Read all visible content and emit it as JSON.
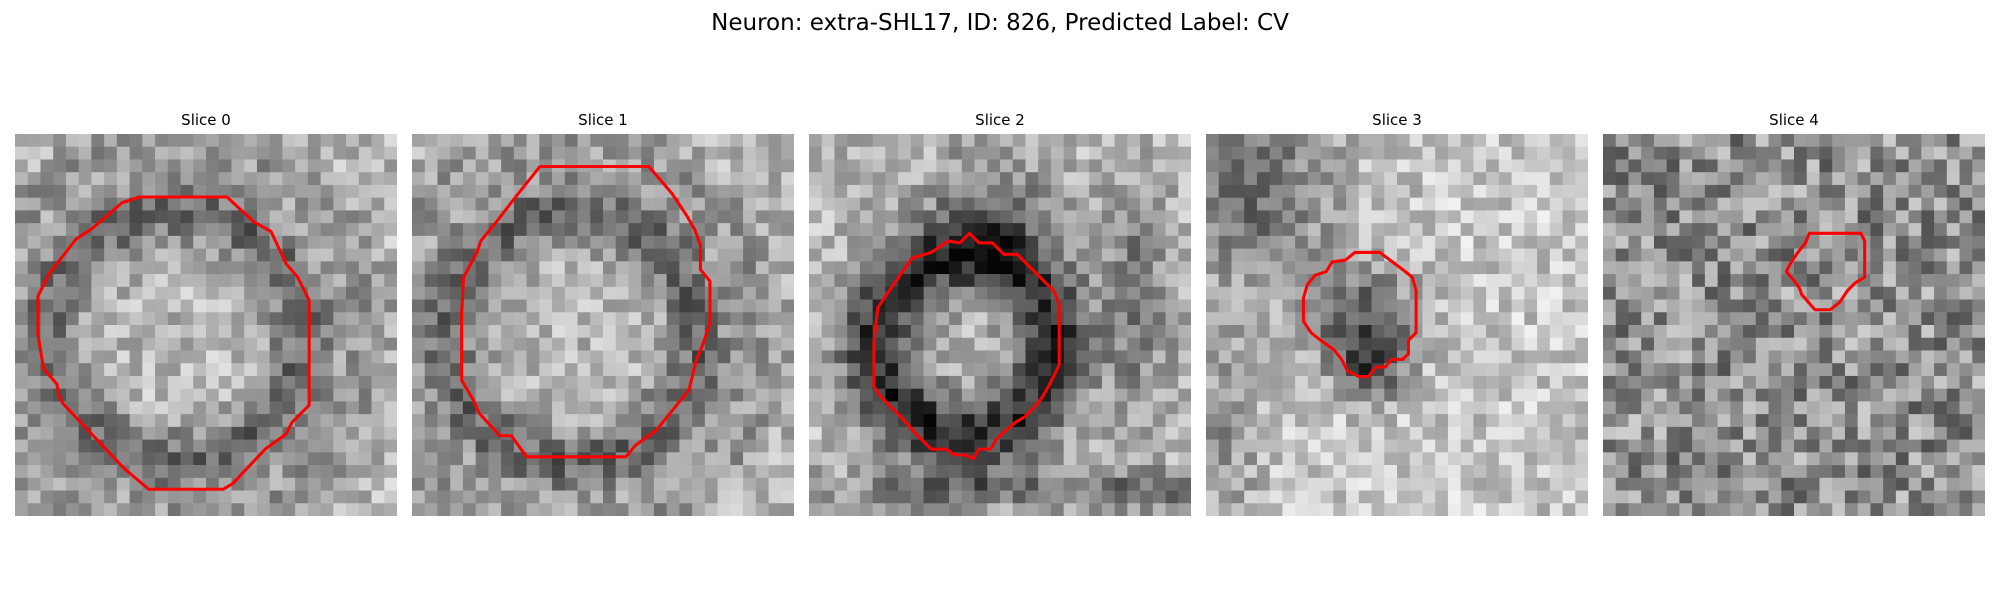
{
  "figure": {
    "title": "Neuron: extra-SHL17, ID: 826, Predicted Label: CV"
  },
  "colors": {
    "contour": "#ff0000",
    "background": "#ffffff"
  },
  "slices": [
    {
      "title": "Slice 0",
      "seed": 11,
      "pattern": "ring",
      "contour": [
        [
          9.6,
          3.3
        ],
        [
          11.1,
          3.3
        ],
        [
          12.5,
          4.6
        ],
        [
          13.4,
          5.1
        ],
        [
          14.2,
          6.8
        ],
        [
          14.8,
          7.5
        ],
        [
          15.4,
          8.7
        ],
        [
          15.4,
          14.2
        ],
        [
          14.5,
          15.1
        ],
        [
          14.2,
          15.7
        ],
        [
          13.1,
          16.5
        ],
        [
          11.4,
          18.3
        ],
        [
          10.9,
          18.6
        ],
        [
          7.0,
          18.6
        ],
        [
          5.7,
          17.5
        ],
        [
          2.5,
          14.1
        ],
        [
          2.3,
          13.7
        ],
        [
          2.2,
          13.1
        ],
        [
          1.5,
          12.3
        ],
        [
          1.2,
          10.5
        ],
        [
          1.2,
          8.5
        ],
        [
          1.8,
          7.3
        ],
        [
          3.2,
          5.5
        ],
        [
          4.1,
          4.9
        ],
        [
          5.6,
          3.6
        ],
        [
          6.5,
          3.3
        ]
      ]
    },
    {
      "title": "Slice 1",
      "seed": 23,
      "pattern": "ring",
      "contour": [
        [
          6.7,
          1.7
        ],
        [
          12.4,
          1.7
        ],
        [
          13.6,
          3.1
        ],
        [
          14.4,
          4.3
        ],
        [
          14.8,
          5.0
        ],
        [
          15.1,
          5.8
        ],
        [
          15.1,
          7.1
        ],
        [
          15.6,
          7.7
        ],
        [
          15.6,
          9.9
        ],
        [
          15.2,
          11.1
        ],
        [
          14.9,
          11.8
        ],
        [
          14.5,
          13.4
        ],
        [
          12.8,
          15.5
        ],
        [
          11.7,
          16.3
        ],
        [
          11.2,
          16.9
        ],
        [
          6.0,
          16.9
        ],
        [
          5.2,
          15.8
        ],
        [
          4.6,
          15.8
        ],
        [
          3.5,
          14.6
        ],
        [
          3.2,
          13.9
        ],
        [
          2.6,
          12.9
        ],
        [
          2.6,
          9.4
        ],
        [
          2.7,
          7.5
        ],
        [
          3.4,
          6.2
        ],
        [
          3.6,
          5.6
        ],
        [
          4.5,
          4.5
        ],
        [
          5.5,
          3.2
        ]
      ]
    },
    {
      "title": "Slice 2",
      "seed": 37,
      "pattern": "darkring",
      "contour": [
        [
          8.9,
          5.7
        ],
        [
          9.6,
          5.7
        ],
        [
          10.2,
          6.3
        ],
        [
          10.9,
          6.3
        ],
        [
          12.1,
          7.5
        ],
        [
          12.8,
          8.2
        ],
        [
          13.1,
          8.9
        ],
        [
          13.1,
          12.1
        ],
        [
          12.6,
          13.1
        ],
        [
          12.2,
          13.8
        ],
        [
          11.8,
          14.3
        ],
        [
          11.3,
          14.8
        ],
        [
          10.8,
          15.1
        ],
        [
          10.1,
          15.7
        ],
        [
          9.8,
          16.0
        ],
        [
          9.5,
          16.5
        ],
        [
          8.9,
          16.5
        ],
        [
          8.6,
          17.0
        ],
        [
          8.2,
          16.8
        ],
        [
          7.6,
          16.8
        ],
        [
          7.2,
          16.5
        ],
        [
          6.4,
          16.5
        ],
        [
          5.6,
          15.7
        ],
        [
          4.8,
          14.8
        ],
        [
          3.7,
          13.7
        ],
        [
          3.4,
          13.2
        ],
        [
          3.4,
          10.9
        ],
        [
          3.6,
          9.1
        ],
        [
          4.0,
          8.5
        ],
        [
          4.9,
          7.2
        ],
        [
          5.4,
          6.5
        ],
        [
          6.4,
          6.2
        ],
        [
          7.3,
          5.6
        ],
        [
          7.9,
          5.7
        ],
        [
          8.4,
          5.2
        ]
      ]
    },
    {
      "title": "Slice 3",
      "seed": 53,
      "pattern": "bright",
      "contour": [
        [
          7.8,
          6.2
        ],
        [
          9.1,
          6.2
        ],
        [
          10.3,
          7.1
        ],
        [
          10.8,
          7.5
        ],
        [
          11.0,
          8.2
        ],
        [
          11.0,
          10.4
        ],
        [
          10.6,
          10.8
        ],
        [
          10.6,
          11.5
        ],
        [
          10.3,
          11.8
        ],
        [
          9.7,
          11.8
        ],
        [
          9.4,
          12.2
        ],
        [
          8.9,
          12.2
        ],
        [
          8.5,
          12.7
        ],
        [
          8.0,
          12.7
        ],
        [
          7.4,
          12.4
        ],
        [
          7.1,
          11.8
        ],
        [
          6.7,
          11.3
        ],
        [
          6.0,
          10.8
        ],
        [
          5.5,
          10.4
        ],
        [
          5.1,
          9.8
        ],
        [
          5.1,
          8.6
        ],
        [
          5.3,
          7.9
        ],
        [
          5.7,
          7.4
        ],
        [
          6.3,
          7.2
        ],
        [
          6.6,
          6.7
        ],
        [
          7.3,
          6.6
        ]
      ]
    },
    {
      "title": "Slice 4",
      "seed": 71,
      "pattern": "noise",
      "contour": [
        [
          10.8,
          5.2
        ],
        [
          13.5,
          5.2
        ],
        [
          13.7,
          5.6
        ],
        [
          13.7,
          7.5
        ],
        [
          13.2,
          7.8
        ],
        [
          12.8,
          8.2
        ],
        [
          12.4,
          8.8
        ],
        [
          11.9,
          9.2
        ],
        [
          11.1,
          9.2
        ],
        [
          10.4,
          8.4
        ],
        [
          10.3,
          8.1
        ],
        [
          10.1,
          7.8
        ],
        [
          9.6,
          7.2
        ],
        [
          9.8,
          6.8
        ],
        [
          10.2,
          6.2
        ],
        [
          10.6,
          5.7
        ]
      ]
    }
  ]
}
